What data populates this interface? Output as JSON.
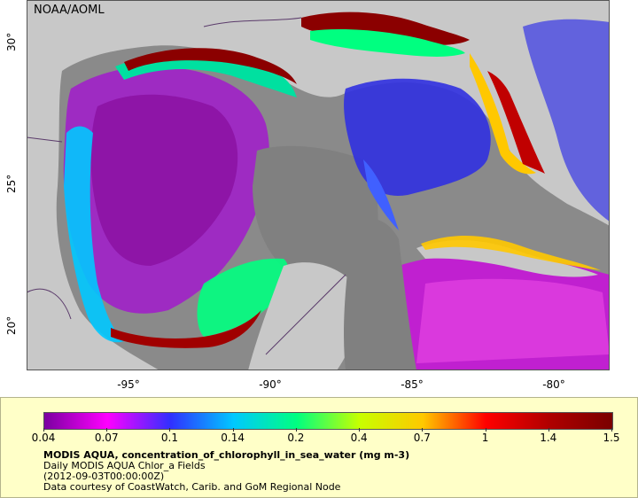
{
  "map": {
    "credit": "NOAA/AOML",
    "lat_ticks": [
      {
        "value": 30,
        "label": "30°"
      },
      {
        "value": 25,
        "label": "25°"
      },
      {
        "value": 20,
        "label": "20°"
      }
    ],
    "lon_ticks": [
      {
        "value": -95,
        "label": "-95°"
      },
      {
        "value": -90,
        "label": "-90°"
      },
      {
        "value": -85,
        "label": "-85°"
      },
      {
        "value": -80,
        "label": "-80°"
      }
    ],
    "colors": {
      "land": "#c8c8c8",
      "no_data": "#808080",
      "coast_high": "#8b0000",
      "border": "#5a3a6a"
    }
  },
  "legend": {
    "colorbar_ticks": [
      "0.04",
      "0.07",
      "0.1",
      "0.14",
      "0.2",
      "0.4",
      "0.7",
      "1",
      "1.4",
      "1.5"
    ],
    "colorbar_colors": [
      "#7a00a0",
      "#ff00ff",
      "#3030ff",
      "#00c8ff",
      "#00ff80",
      "#c8ff00",
      "#ffc800",
      "#ff0000",
      "#b00000",
      "#7a0000"
    ],
    "title": "MODIS AQUA, concentration_of_chlorophyll_in_sea_water (mg m-3)",
    "line2": "Daily MODIS AQUA Chlor_a Fields",
    "line3": "(2012-09-03T00:00:00Z)",
    "line4": "Data courtesy of CoastWatch, Carib. and GoM Regional Node"
  }
}
